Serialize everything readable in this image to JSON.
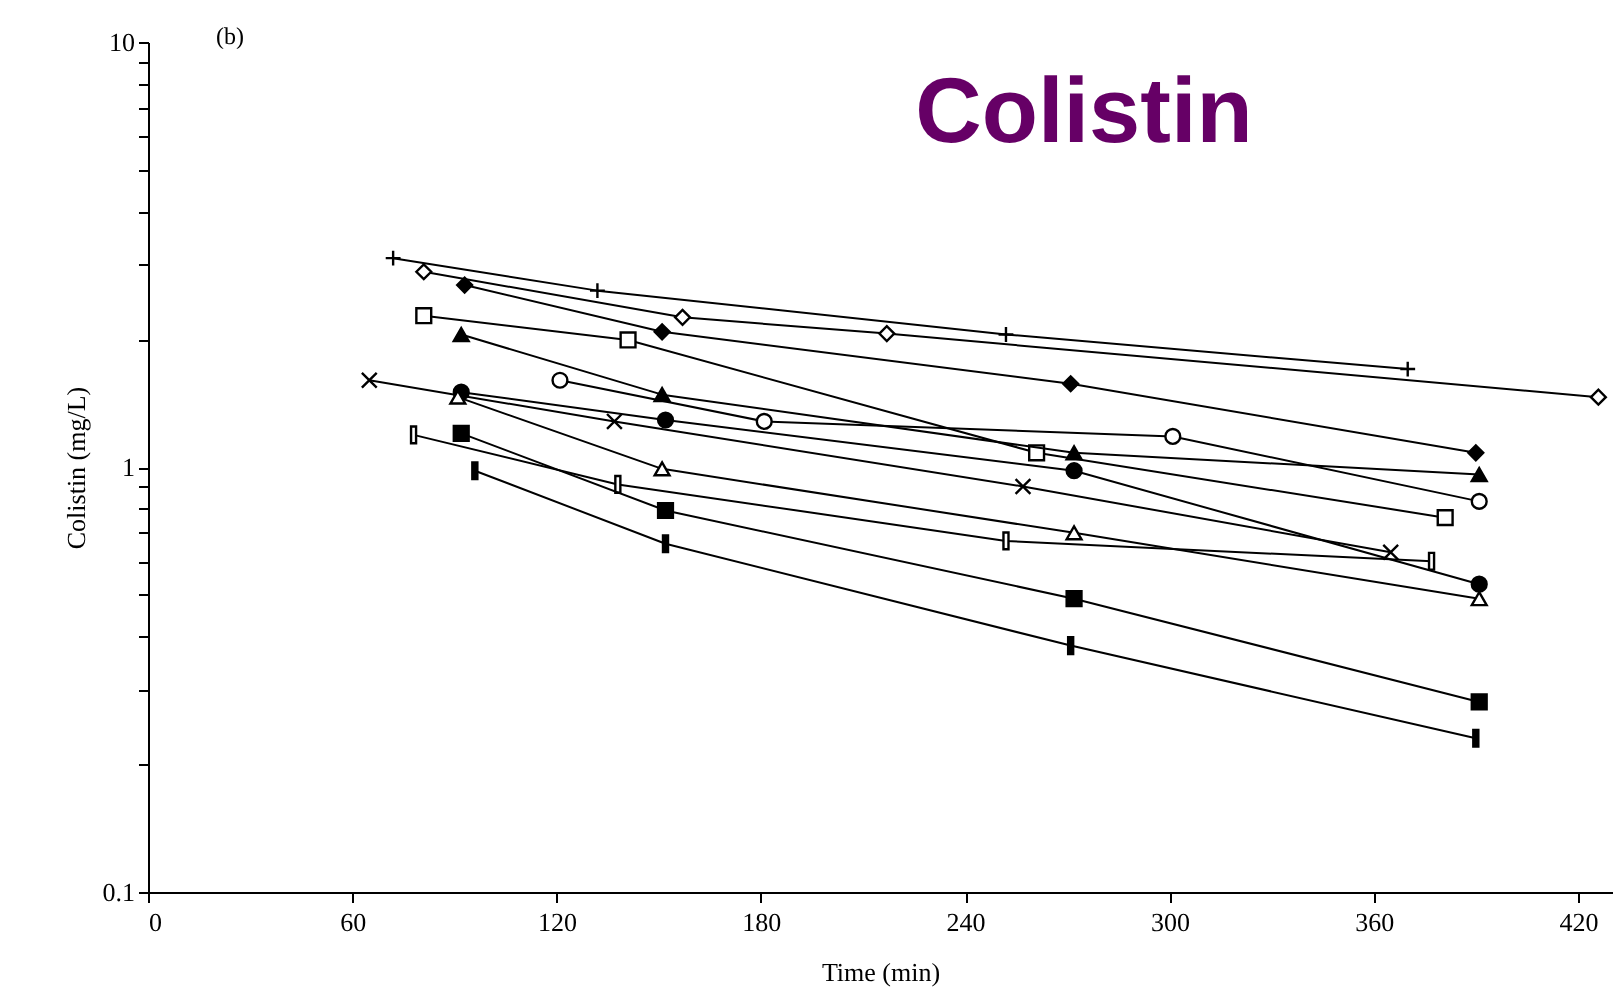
{
  "chart_data": {
    "type": "line",
    "title": "Colistin",
    "xlabel": "Time (min)",
    "ylabel": "Colistin (mg/L)",
    "annotations": [
      "(b)"
    ],
    "log": "y",
    "xlim": [
      0,
      430
    ],
    "xticks": [
      0,
      60,
      120,
      180,
      240,
      300,
      360,
      420
    ],
    "ylim": [
      0.1,
      10
    ],
    "yticks": [
      0.1,
      {
        "value": 0.2,
        "label": null
      },
      {
        "value": 0.3,
        "label": null
      },
      {
        "value": 0.4,
        "label": null
      },
      {
        "value": 0.5,
        "label": null
      },
      {
        "value": 0.6,
        "label": null
      },
      {
        "value": 0.7,
        "label": null
      },
      {
        "value": 0.8,
        "label": null
      },
      {
        "value": 0.9,
        "label": null
      },
      1,
      {
        "value": 2,
        "label": null
      },
      {
        "value": 3,
        "label": null
      },
      {
        "value": 4,
        "label": null
      },
      {
        "value": 5,
        "label": null
      },
      {
        "value": 6,
        "label": null
      },
      {
        "value": 7,
        "label": null
      },
      {
        "value": 8,
        "label": null
      },
      {
        "value": 9,
        "label": null
      },
      10
    ],
    "grid": false,
    "line_style": "solid",
    "series": [
      {
        "color": "#000000",
        "marker": "cross",
        "x": [
          72,
          132,
          252,
          370
        ],
        "values": [
          3.1,
          2.6,
          2.05,
          1.7
        ]
      },
      {
        "color": "#000000",
        "marker": "diamond",
        "x": [
          81,
          157,
          217,
          426
        ],
        "values": [
          2.88,
          2.25,
          2.06,
          1.46
        ]
      },
      {
        "color": "#000000",
        "marker": "diamond",
        "x": [
          93,
          151,
          271,
          390
        ],
        "values": [
          2.68,
          2.08,
          1.57,
          1.08
        ]
      },
      {
        "color": "#000000",
        "marker": "square",
        "x": [
          81,
          141,
          261,
          381
        ],
        "values": [
          2.27,
          1.99,
          1.08,
          0.76
        ]
      },
      {
        "color": "#000000",
        "marker": "triangle",
        "x": [
          92,
          151,
          272,
          391
        ],
        "values": [
          2.05,
          1.48,
          1.08,
          0.96
        ]
      },
      {
        "color": "#000000",
        "marker": "cross",
        "x": [
          65,
          137,
          257,
          365
        ],
        "values": [
          1.6,
          1.28,
          0.9,
          0.63
        ]
      },
      {
        "color": "#000000",
        "marker": "circle",
        "x": [
          121,
          181,
          301,
          391
        ],
        "values": [
          1.6,
          1.28,
          1.18,
          0.83
        ]
      },
      {
        "color": "#000000",
        "marker": "circle",
        "x": [
          92,
          152,
          272,
          391
        ],
        "values": [
          1.5,
          1.29,
          0.98,
          0.53
        ]
      },
      {
        "color": "#000000",
        "marker": "triangle",
        "x": [
          91,
          151,
          272,
          391
        ],
        "values": [
          1.46,
          0.99,
          0.7,
          0.49
        ]
      },
      {
        "color": "#000000",
        "marker": "square",
        "x": [
          78,
          138,
          252,
          377
        ],
        "values": [
          1.19,
          0.91,
          0.67,
          0.6
        ]
      },
      {
        "color": "#000000",
        "marker": "square",
        "x": [
          92,
          152,
          272,
          391
        ],
        "values": [
          1.2,
          0.79,
          0.49,
          0.28
        ]
      },
      {
        "color": "#000000",
        "marker": "square",
        "x": [
          96,
          152,
          271,
          390
        ],
        "values": [
          0.98,
          0.66,
          0.38,
          0.23
        ]
      }
    ]
  }
}
